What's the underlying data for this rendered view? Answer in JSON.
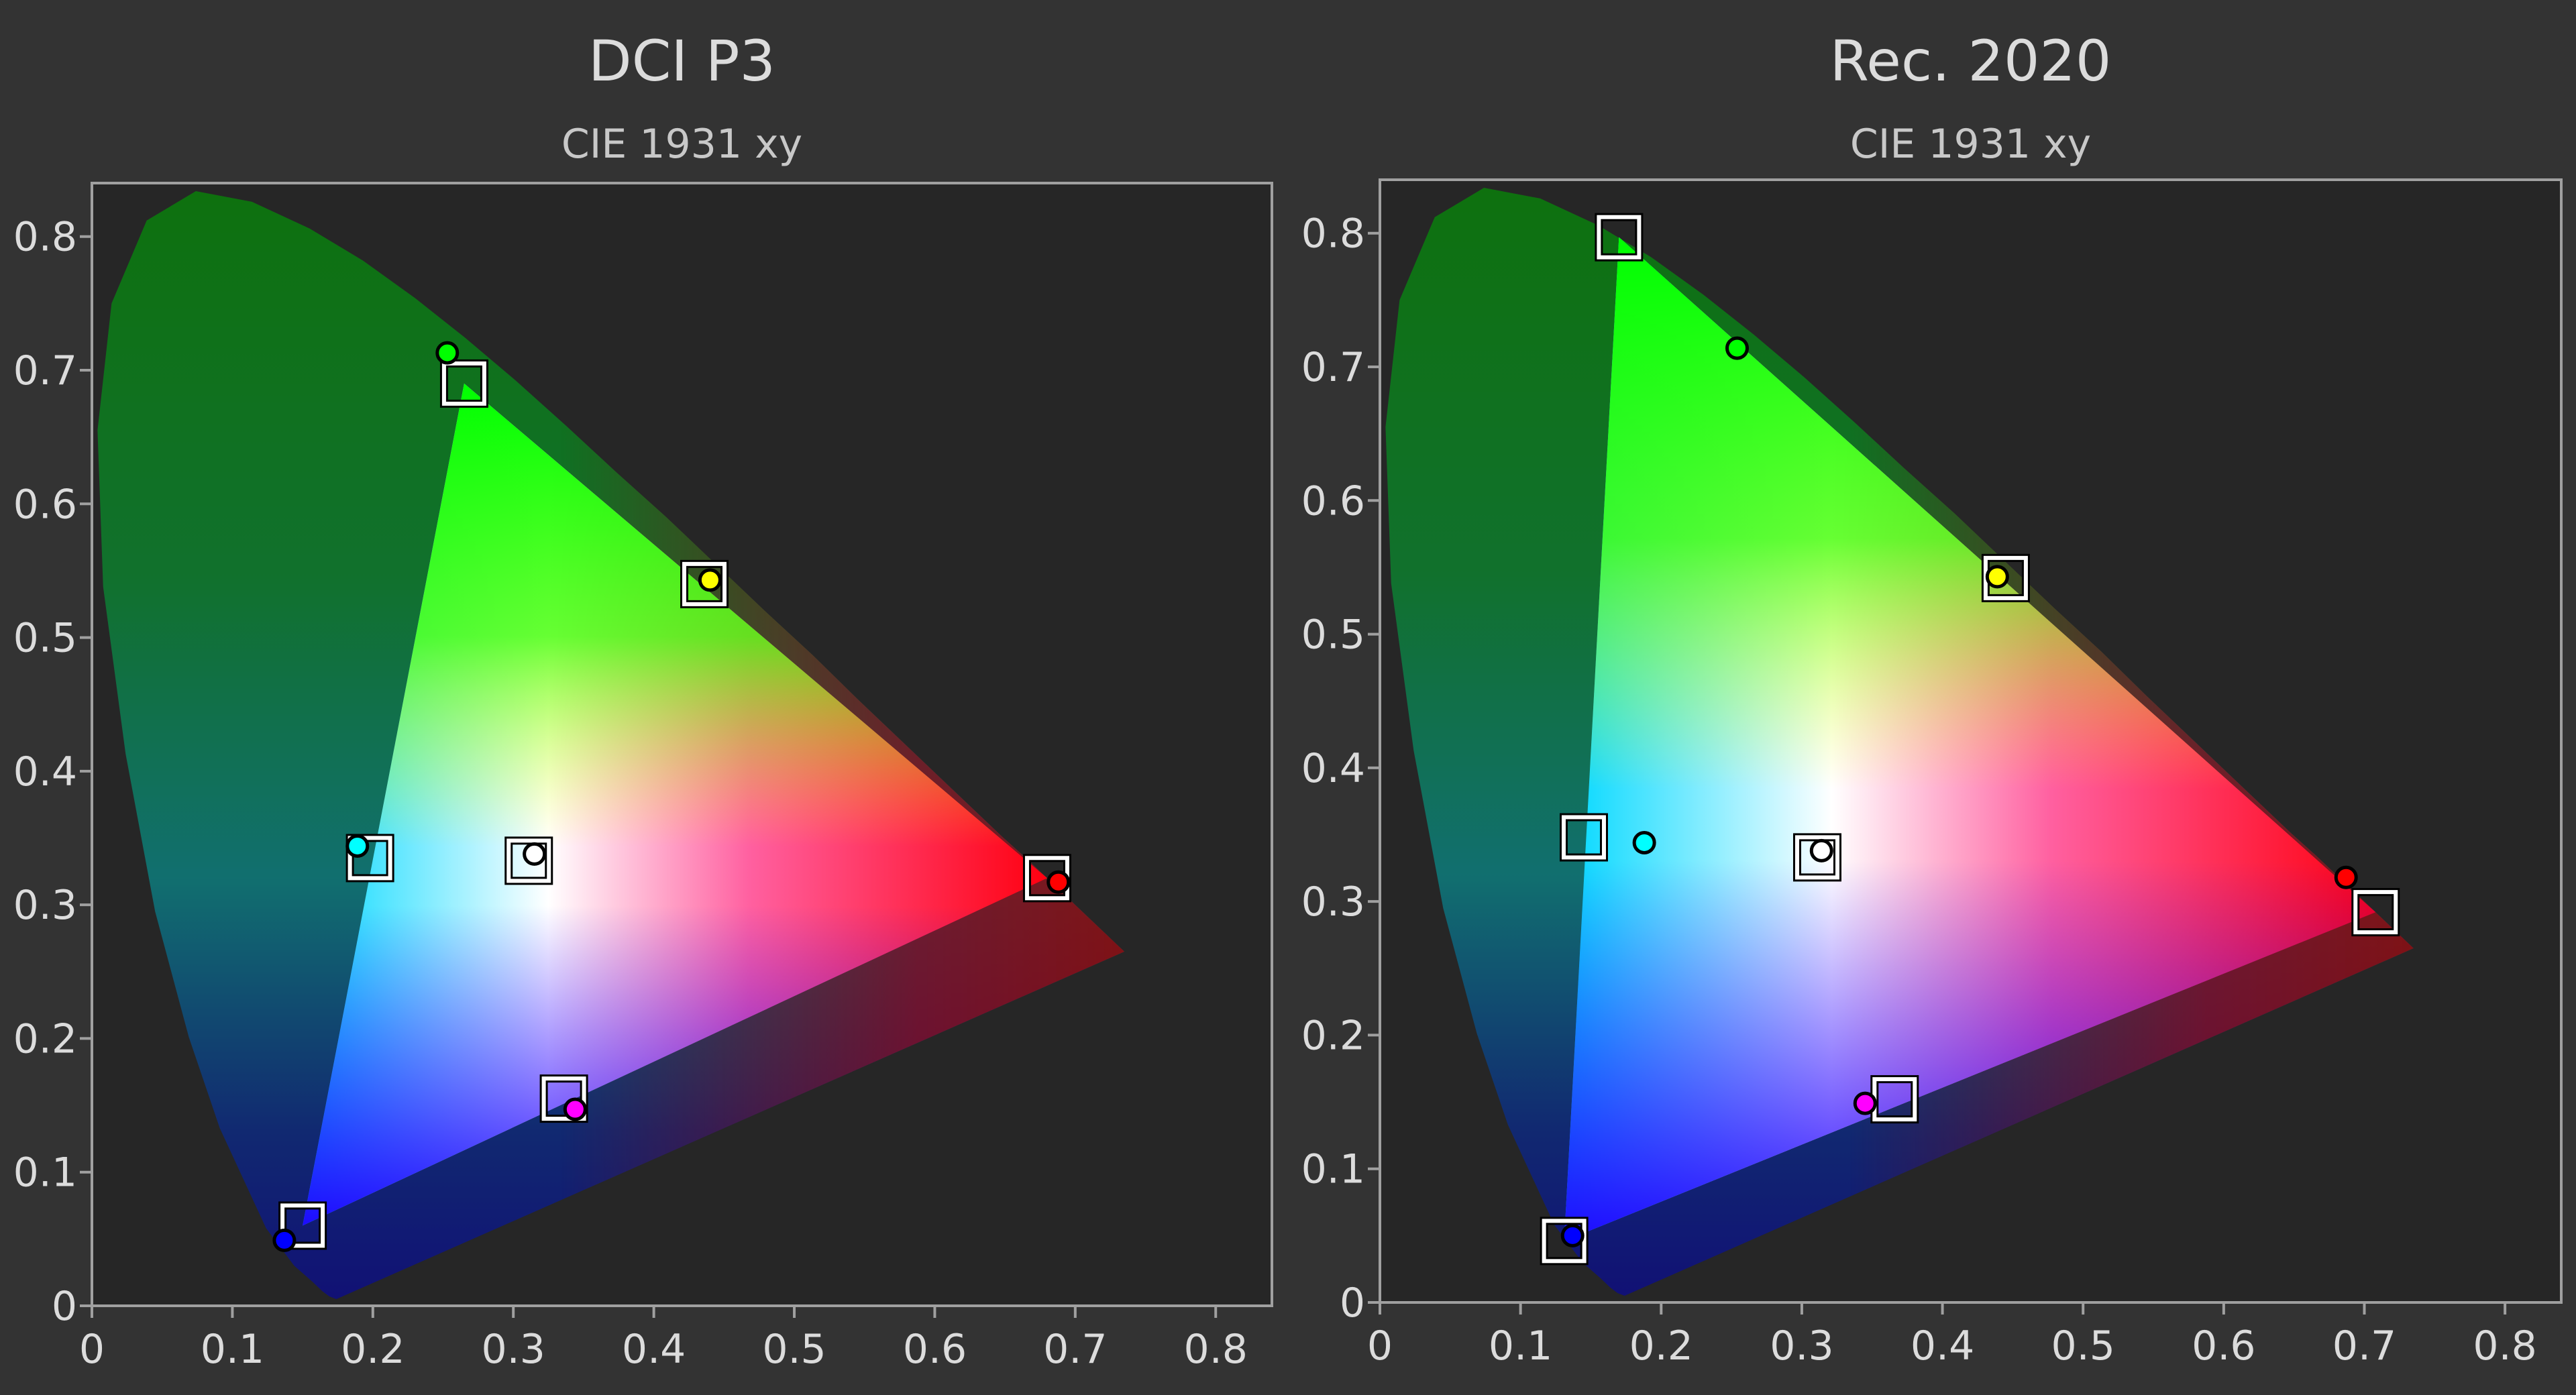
{
  "chart_data": [
    {
      "type": "scatter",
      "title": "DCI P3",
      "subtitle": "CIE 1931 xy",
      "xlim": [
        0,
        0.84
      ],
      "ylim": [
        0,
        0.84
      ],
      "xticks": [
        0,
        0.1,
        0.2,
        0.3,
        0.4,
        0.5,
        0.6,
        0.7,
        0.8
      ],
      "yticks": [
        0,
        0.1,
        0.2,
        0.3,
        0.4,
        0.5,
        0.6,
        0.7,
        0.8
      ],
      "series": [
        {
          "marker": "square",
          "color": "#ffffff",
          "x": [
            0.68,
            0.265,
            0.15,
            0.198,
            0.336,
            0.436,
            0.311
          ],
          "values": [
            0.32,
            0.69,
            0.06,
            0.335,
            0.155,
            0.54,
            0.333
          ]
        },
        {
          "marker": "circle",
          "colors": [
            "#ff0000",
            "#00ff00",
            "#0000ff",
            "#00ffff",
            "#ff00ff",
            "#ffff00",
            "#ffffff"
          ],
          "x": [
            0.688,
            0.253,
            0.137,
            0.189,
            0.344,
            0.44,
            0.315
          ],
          "values": [
            0.317,
            0.713,
            0.049,
            0.344,
            0.147,
            0.543,
            0.338
          ]
        }
      ]
    },
    {
      "type": "scatter",
      "title": "Rec. 2020",
      "subtitle": "CIE 1931 xy",
      "xlim": [
        0,
        0.84
      ],
      "ylim": [
        0,
        0.84
      ],
      "xticks": [
        0,
        0.1,
        0.2,
        0.3,
        0.4,
        0.5,
        0.6,
        0.7,
        0.8
      ],
      "yticks": [
        0,
        0.1,
        0.2,
        0.3,
        0.4,
        0.5,
        0.6,
        0.7,
        0.8
      ],
      "series": [
        {
          "marker": "square",
          "color": "#ffffff",
          "x": [
            0.708,
            0.17,
            0.131,
            0.145,
            0.366,
            0.445,
            0.311
          ],
          "values": [
            0.292,
            0.797,
            0.046,
            0.348,
            0.152,
            0.542,
            0.333
          ]
        },
        {
          "marker": "circle",
          "colors": [
            "#ff0000",
            "#00ff00",
            "#0000ff",
            "#00ffff",
            "#ff00ff",
            "#ffff00",
            "#ffffff"
          ],
          "x": [
            0.687,
            0.254,
            0.137,
            0.188,
            0.345,
            0.439,
            0.314
          ],
          "values": [
            0.318,
            0.714,
            0.05,
            0.344,
            0.149,
            0.543,
            0.338
          ]
        }
      ]
    }
  ]
}
